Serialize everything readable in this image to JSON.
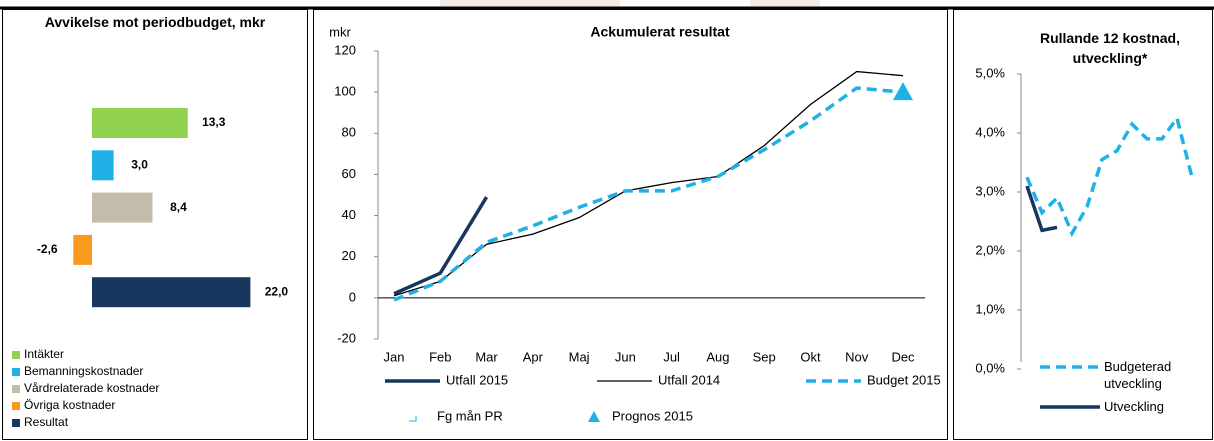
{
  "chart_data": [
    {
      "type": "hbar",
      "title": "Avvikelse mot periodbudget, mkr",
      "categories": [
        "Intäkter",
        "Bemanningskostnader",
        "Vårdrelaterade kostnader",
        "Övriga kostnader",
        "Resultat"
      ],
      "values": [
        13.3,
        3.0,
        8.4,
        -2.6,
        22.0
      ],
      "value_labels": [
        "13,3",
        "3,0",
        "8,4",
        "-2,6",
        "22,0"
      ],
      "colors": [
        "#92d050",
        "#1fb1e6",
        "#c4bca8",
        "#f79a1e",
        "#17375e"
      ]
    },
    {
      "type": "line",
      "title": "Ackumulerat resultat",
      "ylabel": "mkr",
      "categories": [
        "Jan",
        "Feb",
        "Mar",
        "Apr",
        "Maj",
        "Jun",
        "Jul",
        "Aug",
        "Sep",
        "Okt",
        "Nov",
        "Dec"
      ],
      "ylim": [
        -20,
        120
      ],
      "yticks": [
        -20,
        0,
        20,
        40,
        60,
        80,
        100,
        120
      ],
      "series": [
        {
          "name": "Utfall 2015",
          "color": "#17375e",
          "style": "thick",
          "values": [
            2,
            12,
            49,
            null,
            null,
            null,
            null,
            null,
            null,
            null,
            null,
            null
          ]
        },
        {
          "name": "Utfall 2014",
          "color": "#000000",
          "style": "thin",
          "values": [
            1,
            8,
            26,
            31,
            39,
            52,
            56,
            59,
            74,
            94,
            110,
            108
          ]
        },
        {
          "name": "Budget 2015",
          "color": "#1fb1e6",
          "style": "dashed",
          "values": [
            -1,
            8,
            27,
            35,
            44,
            52,
            52,
            59,
            72,
            86,
            102,
            100
          ]
        },
        {
          "name": "Fg mån PR",
          "color": "#1fb1e6",
          "style": "marker",
          "values": [
            null,
            null,
            null,
            null,
            null,
            null,
            null,
            null,
            null,
            null,
            null,
            null
          ]
        },
        {
          "name": "Prognos 2015",
          "color": "#1fb1e6",
          "style": "triangle",
          "values": [
            null,
            null,
            null,
            null,
            null,
            null,
            null,
            null,
            null,
            null,
            null,
            100
          ]
        }
      ]
    },
    {
      "type": "line",
      "title": "Rullande 12 kostnad, utveckling*",
      "categories": [
        null,
        null,
        null,
        null,
        null,
        null,
        null,
        null,
        null,
        null,
        null,
        null
      ],
      "ylim": [
        0,
        5
      ],
      "yticks": [
        {
          "value": 0,
          "label": "0,0%"
        },
        {
          "value": 1,
          "label": "1,0%"
        },
        {
          "value": 2,
          "label": "2,0%"
        },
        {
          "value": 3,
          "label": "3,0%"
        },
        {
          "value": 4,
          "label": "4,0%"
        },
        {
          "value": 5,
          "label": "5,0%"
        }
      ],
      "series": [
        {
          "name": "Budgeterad utveckling",
          "color": "#1fb1e6",
          "style": "dashed",
          "values": [
            3.25,
            2.65,
            2.9,
            2.3,
            2.75,
            3.55,
            3.7,
            4.15,
            3.9,
            3.9,
            4.25,
            3.25
          ]
        },
        {
          "name": "Utveckling",
          "color": "#17375e",
          "style": "thick",
          "values": [
            3.1,
            2.35,
            2.4,
            null,
            null,
            null,
            null,
            null,
            null,
            null,
            null,
            null
          ]
        }
      ]
    }
  ]
}
